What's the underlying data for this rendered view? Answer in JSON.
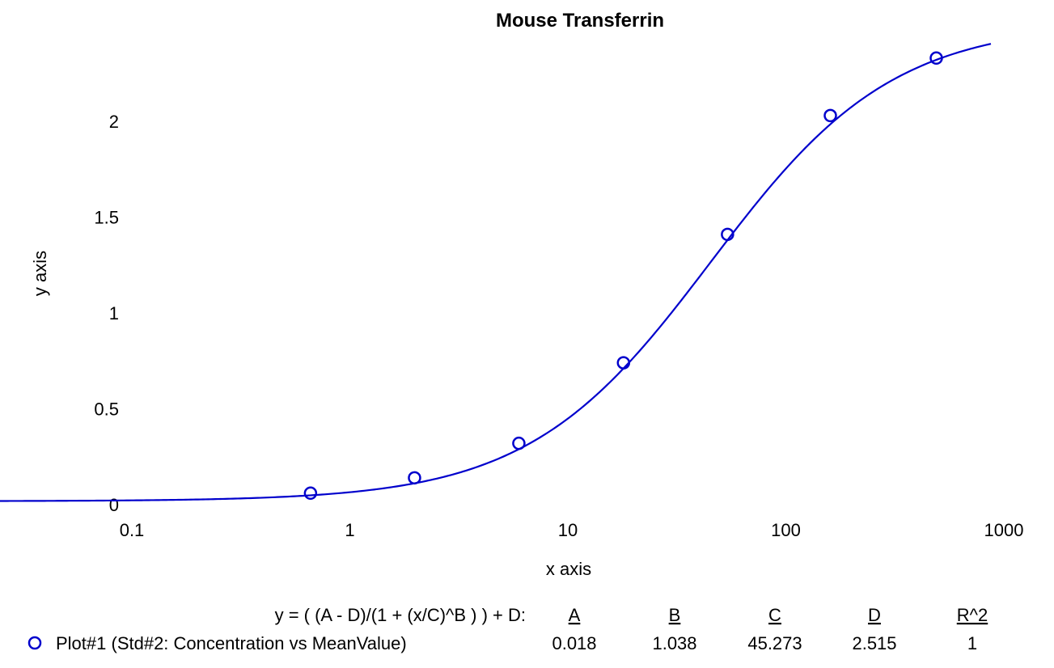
{
  "chart_data": {
    "type": "line",
    "title": "Mouse Transferrin",
    "xlabel": "x axis",
    "ylabel": "y axis",
    "x_scale": "log",
    "x_ticks": [
      "0.1",
      "1",
      "10",
      "100",
      "1000"
    ],
    "y_ticks": [
      "0",
      "0.5",
      "1",
      "1.5",
      "2"
    ],
    "xlim": [
      0.1,
      1000
    ],
    "ylim": [
      0,
      2.5
    ],
    "grid": false,
    "legend_position": "bottom",
    "series": [
      {
        "name": "Plot#1 (Std#2: Concentration vs MeanValue)",
        "color": "#0000cc",
        "marker": "circle",
        "points": [
          {
            "x": 0.66,
            "y": 0.06
          },
          {
            "x": 1.98,
            "y": 0.14
          },
          {
            "x": 5.96,
            "y": 0.32
          },
          {
            "x": 18.0,
            "y": 0.74
          },
          {
            "x": 54.0,
            "y": 1.41
          },
          {
            "x": 160.0,
            "y": 2.03
          },
          {
            "x": 490.0,
            "y": 2.33
          }
        ]
      }
    ],
    "fit": {
      "equation": "y = ( (A - D)/(1 + (x/C)^B ) ) + D:",
      "param_names": [
        "A",
        "B",
        "C",
        "D",
        "R^2"
      ],
      "param_values": [
        "0.018",
        "1.038",
        "45.273",
        "2.515",
        "1"
      ],
      "A": 0.018,
      "B": 1.038,
      "C": 45.273,
      "D": 2.515,
      "color": "#0000cc"
    }
  }
}
